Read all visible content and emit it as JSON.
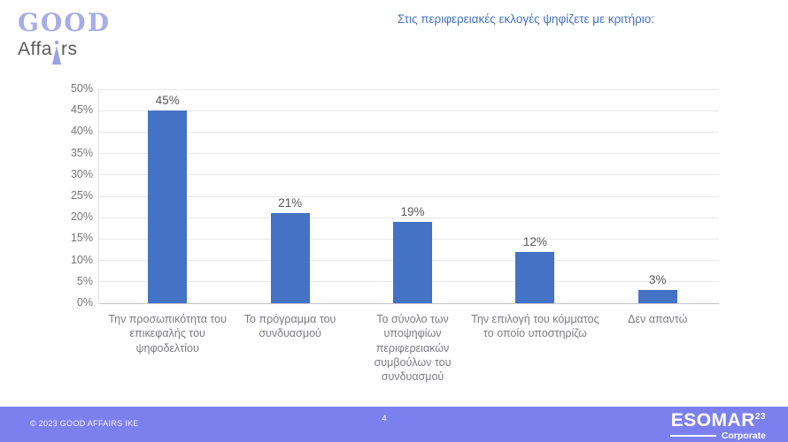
{
  "logo": {
    "line1": "GOOD",
    "line2_prefix": "Affa",
    "line2_suffix": "rs",
    "accent_color": "#a8ace6",
    "text_color": "#5b5b5b"
  },
  "title": "Στις περιφερειακές εκλογές ψηφίζετε με κριτήριο:",
  "chart_data": {
    "type": "bar",
    "title": "Στις περιφερειακές εκλογές ψηφίζετε με κριτήριο:",
    "categories": [
      "Την προσωπικότητα του επικεφαλής του ψηφοδελτίου",
      "Το πρόγραμμα του συνδυασμού",
      "Το σύνολο των υποψηφίων περιφερειακών συμβούλων του συνδυασμού",
      "Την επιλογή του κόμματος το οποίο υποστηρίζω",
      "Δεν απαντώ"
    ],
    "values": [
      45,
      21,
      19,
      12,
      3
    ],
    "value_labels": [
      "45%",
      "21%",
      "19%",
      "12%",
      "3%"
    ],
    "xlabel": "",
    "ylabel": "",
    "ylim": [
      0,
      50
    ],
    "ytick_step": 5,
    "ytick_suffix": "%",
    "grid": true,
    "legend": false,
    "bar_color": "#4472c4"
  },
  "footer": {
    "copyright": "© 2023 GOOD AFFAIRS IKE",
    "page_number": "4",
    "esomar_name": "ESOMAR",
    "esomar_year": "23",
    "esomar_subtitle": "Corporate",
    "bg_color": "#7c80ef"
  }
}
